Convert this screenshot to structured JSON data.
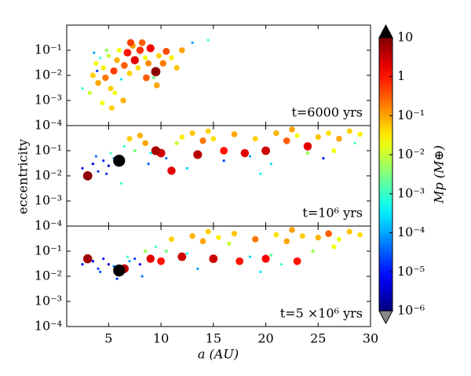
{
  "chart_data": {
    "type": "scatter",
    "xlabel": "a (AU)",
    "ylabel": "eccentricity",
    "xlim": [
      1,
      30
    ],
    "xticks": [
      5,
      10,
      15,
      20,
      25,
      30
    ],
    "log_y": true,
    "colorbar": {
      "label": "Mp (M⊕)",
      "colormap": "jet",
      "lim": [
        1e-06,
        10
      ],
      "log": true,
      "ticks": [
        10,
        1,
        {
          "value": 0.1,
          "label": "10⁻¹"
        },
        {
          "value": 0.01,
          "label": "10⁻²"
        },
        {
          "value": 0.001,
          "label": "10⁻³"
        },
        {
          "value": 0.0001,
          "label": "10⁻⁴"
        },
        {
          "value": 1e-05,
          "label": "10⁻⁵"
        },
        {
          "value": 1e-06,
          "label": "10⁻⁶"
        }
      ]
    },
    "panels": [
      {
        "annotation": "t=6000 yrs",
        "ylim": [
          0.0001,
          1
        ],
        "yticks": [
          {
            "value": 0.0001,
            "label": "10⁻⁴"
          },
          {
            "value": 0.001,
            "label": "10⁻³"
          },
          {
            "value": 0.01,
            "label": "10⁻²"
          },
          {
            "value": 0.1,
            "label": "10⁻¹"
          }
        ],
        "x": [
          3.5,
          3.8,
          4.0,
          4.2,
          4.5,
          4.7,
          5.0,
          5.2,
          5.5,
          5.8,
          6.0,
          6.2,
          6.5,
          6.8,
          7.0,
          7.3,
          7.5,
          7.8,
          8.0,
          8.2,
          8.5,
          8.8,
          9.0,
          9.3,
          9.8,
          10.2,
          10.5,
          11.0,
          11.5,
          12.0,
          3.2,
          2.5,
          4.4,
          5.3,
          6.4,
          14.5,
          13.0,
          3.6,
          7.1,
          4.8,
          5.6,
          8.6,
          9.6,
          3.9,
          9.5
        ],
        "y": [
          0.01,
          0.03,
          0.005,
          0.05,
          0.02,
          0.008,
          0.06,
          0.003,
          0.015,
          0.04,
          0.1,
          0.007,
          0.025,
          0.08,
          0.012,
          0.15,
          0.04,
          0.02,
          0.1,
          0.2,
          0.05,
          0.03,
          0.12,
          0.008,
          0.06,
          0.03,
          0.09,
          0.05,
          0.02,
          0.1,
          0.002,
          0.003,
          0.0008,
          0.0005,
          0.001,
          0.25,
          0.2,
          0.08,
          0.2,
          0.1,
          0.002,
          0.008,
          0.004,
          0.015,
          0.014
        ],
        "mass": [
          0.05,
          0.02,
          0.1,
          0.001,
          0.03,
          0.2,
          0.01,
          0.05,
          0.5,
          0.08,
          0.02,
          0.0003,
          0.3,
          1,
          0.05,
          0.1,
          2,
          0.04,
          0.6,
          0.3,
          0.02,
          0.15,
          1.5,
          0.003,
          0.05,
          0.2,
          0.4,
          0.03,
          0.06,
          0.1,
          0.01,
          0.001,
          0.02,
          0.05,
          0.08,
          0.001,
          0.0001,
          0.0001,
          0.5,
          0.005,
          0.02,
          0.3,
          0.1,
          2e-05,
          8
        ]
      },
      {
        "annotation": "t=10⁶ yrs",
        "ylim": [
          0.0001,
          1
        ],
        "yticks": [
          {
            "value": 0.0001,
            "label": "10⁻⁴"
          },
          {
            "value": 0.001,
            "label": "10⁻³"
          },
          {
            "value": 0.01,
            "label": "10⁻²"
          },
          {
            "value": 0.1,
            "label": "10⁻¹"
          }
        ],
        "x": [
          2.5,
          3.5,
          4.0,
          4.5,
          5.0,
          5.5,
          3.8,
          4.8,
          5.2,
          7.0,
          8.0,
          8.5,
          12.0,
          13.0,
          14.0,
          15.0,
          17.0,
          19.0,
          21.0,
          22.0,
          23.0,
          25.0,
          26.0,
          27.0,
          28.0,
          29.0,
          6.5,
          7.5,
          9.0,
          10.5,
          11.5,
          16.0,
          18.5,
          20.5,
          24.0,
          26.5,
          28.5,
          14.5,
          22.5,
          6.0,
          3.0,
          9.5,
          11.0,
          10.0,
          13.5,
          18.0,
          20.0,
          24.0,
          16.0,
          6.2,
          8.8,
          12.5,
          19.5,
          25.5
        ],
        "y": [
          0.02,
          0.03,
          0.015,
          0.04,
          0.025,
          0.05,
          0.06,
          0.012,
          0.08,
          0.3,
          0.4,
          0.2,
          0.35,
          0.5,
          0.25,
          0.3,
          0.45,
          0.3,
          0.5,
          0.25,
          0.4,
          0.35,
          0.5,
          0.3,
          0.6,
          0.45,
          0.15,
          0.1,
          0.08,
          0.05,
          0.2,
          0.04,
          0.06,
          0.03,
          0.08,
          0.1,
          0.2,
          0.6,
          0.7,
          0.04,
          0.01,
          0.1,
          0.016,
          0.08,
          0.07,
          0.08,
          0.1,
          0.15,
          0.1,
          0.005,
          0.03,
          0.02,
          0.012,
          0.05
        ],
        "mass": [
          1e-05,
          5e-06,
          2e-05,
          1e-05,
          3e-06,
          0.0001,
          5e-05,
          2e-05,
          0.001,
          0.05,
          0.08,
          0.1,
          0.03,
          0.06,
          0.2,
          0.04,
          0.1,
          0.05,
          0.08,
          0.3,
          0.02,
          0.06,
          0.04,
          0.1,
          0.05,
          0.03,
          0.001,
          0.003,
          0.0005,
          5e-05,
          0.01,
          2e-05,
          0.0001,
          0.0003,
          0.005,
          0.02,
          0.001,
          0.05,
          0.1,
          300,
          8,
          5,
          2,
          3,
          4,
          2,
          3,
          2,
          1,
          0.001,
          3e-05,
          0.0002,
          0.0005,
          1e-05
        ]
      },
      {
        "annotation": "t=5 ×10⁶ yrs",
        "ylim": [
          0.0001,
          1
        ],
        "yticks": [
          {
            "value": 0.0001,
            "label": "10⁻⁴"
          },
          {
            "value": 0.001,
            "label": "10⁻³"
          },
          {
            "value": 0.01,
            "label": "10⁻²"
          },
          {
            "value": 0.1,
            "label": "10⁻¹"
          }
        ],
        "x": [
          2.5,
          3.5,
          4.0,
          4.5,
          5.0,
          5.5,
          7.0,
          7.5,
          8.0,
          4.2,
          6.8,
          8.5,
          11.0,
          13.0,
          14.0,
          15.5,
          17.0,
          19.0,
          21.0,
          22.0,
          23.5,
          25.0,
          26.0,
          27.0,
          28.0,
          29.0,
          9.5,
          10.5,
          12.5,
          16.5,
          18.5,
          20.5,
          24.5,
          26.5,
          14.5,
          22.5,
          6.0,
          3.0,
          6.5,
          9.0,
          12.0,
          15.0,
          17.5,
          20.0,
          23.0,
          10.0,
          5.8,
          8.2,
          13.5,
          19.5,
          21.5
        ],
        "y": [
          0.03,
          0.04,
          0.02,
          0.05,
          0.03,
          0.025,
          0.04,
          0.05,
          0.03,
          0.015,
          0.06,
          0.1,
          0.3,
          0.4,
          0.25,
          0.35,
          0.5,
          0.3,
          0.45,
          0.25,
          0.4,
          0.35,
          0.5,
          0.3,
          0.6,
          0.45,
          0.15,
          0.1,
          0.08,
          0.2,
          0.06,
          0.07,
          0.1,
          0.15,
          0.6,
          0.7,
          0.017,
          0.05,
          0.02,
          0.05,
          0.06,
          0.05,
          0.04,
          0.05,
          0.04,
          0.04,
          0.008,
          0.01,
          0.02,
          0.015,
          0.03
        ],
        "mass": [
          1e-05,
          5e-06,
          2e-05,
          1e-05,
          3e-06,
          5e-05,
          0.0001,
          2e-05,
          8e-06,
          3e-05,
          0.001,
          0.005,
          0.05,
          0.08,
          0.1,
          0.03,
          0.06,
          0.2,
          0.04,
          0.1,
          0.05,
          0.08,
          0.3,
          0.02,
          0.06,
          0.04,
          0.001,
          0.003,
          0.0005,
          0.01,
          0.0002,
          0.002,
          0.005,
          0.02,
          0.05,
          0.1,
          300,
          6,
          4,
          2,
          3,
          3,
          1,
          1.5,
          1,
          1,
          2e-05,
          5e-05,
          0.0001,
          0.0003,
          0.0008
        ]
      }
    ]
  }
}
